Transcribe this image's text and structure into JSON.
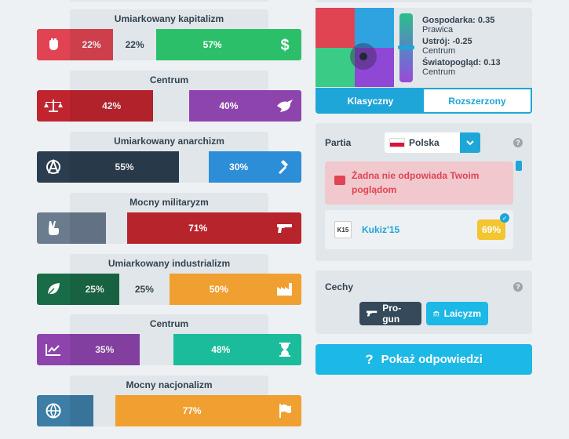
{
  "axes": [
    {
      "title": "Umiarkowany kapitalizm",
      "left_icon": "fist-icon",
      "right_icon": "dollar-icon",
      "left_color": "#e04453",
      "right_color": "#2bbf6a",
      "left_pct": "22%",
      "center_pct": "22%",
      "right_pct": "57%",
      "left_val": 22,
      "center_val": 22,
      "right_val": 57
    },
    {
      "title": "Centrum",
      "left_icon": "scales-icon",
      "right_icon": "dove-icon",
      "left_color": "#c0252f",
      "right_color": "#8e44ad",
      "left_pct": "42%",
      "center_pct": "",
      "right_pct": "40%",
      "left_val": 42,
      "center_val": 18,
      "right_val": 40
    },
    {
      "title": "Umiarkowany anarchizm",
      "left_icon": "anarchy-icon",
      "right_icon": "gavel-icon",
      "left_color": "#2b3e50",
      "right_color": "#2d8ed8",
      "left_pct": "55%",
      "center_pct": "",
      "right_pct": "30%",
      "left_val": 55,
      "center_val": 15,
      "right_val": 30
    },
    {
      "title": "Mocny militaryzm",
      "left_icon": "peace-hand-icon",
      "right_icon": "gun-icon",
      "left_color": "#6b7c8f",
      "right_color": "#b8242b",
      "left_pct": "",
      "center_pct": "",
      "right_pct": "71%",
      "left_val": 18,
      "center_val": 11,
      "right_val": 71
    },
    {
      "title": "Umiarkowany industrializm",
      "left_icon": "leaf-icon",
      "right_icon": "factory-icon",
      "left_color": "#1a6b47",
      "right_color": "#f0a030",
      "left_pct": "25%",
      "center_pct": "25%",
      "right_pct": "50%",
      "left_val": 25,
      "center_val": 25,
      "right_val": 50
    },
    {
      "title": "Centrum",
      "left_icon": "chart-up-icon",
      "right_icon": "hourglass-icon",
      "left_color": "#8e44ad",
      "right_color": "#1abc9c",
      "left_pct": "35%",
      "center_pct": "",
      "right_pct": "48%",
      "left_val": 35,
      "center_val": 17,
      "right_val": 48
    },
    {
      "title": "Mocny nacjonalizm",
      "left_icon": "globe-icon",
      "right_icon": "flag-icon",
      "left_color": "#3d7ea6",
      "right_color": "#f0a030",
      "left_pct": "",
      "center_pct": "",
      "right_pct": "77%",
      "left_val": 12,
      "center_val": 11,
      "right_val": 77
    }
  ],
  "compass": {
    "gospodarka_label": "Gospodarka: 0.35",
    "gospodarka_sub": "Prawica",
    "gospodarka_val": 0.35,
    "ustroj_label": "Ustrój: -0.25",
    "ustroj_sub": "Centrum",
    "ustroj_val": -0.25,
    "swiatopoglad_label": "Światopogląd: 0.13",
    "swiatopoglad_sub": "Centrum",
    "swiatopoglad_val": 0.13,
    "tab_classic": "Klasyczny",
    "tab_extended": "Rozszerzony"
  },
  "party": {
    "label": "Partia",
    "help": "?",
    "country": "Polska",
    "alert": "Żadna nie odpowiada Twoim poglądom",
    "match_logo": "K15",
    "match_name": "Kukiz'15",
    "match_pct": "69%"
  },
  "traits": {
    "label": "Cechy",
    "help": "?",
    "items": [
      "Pro-gun",
      "Laicyzm"
    ]
  },
  "show_answers": "Pokaż odpowiedzi"
}
